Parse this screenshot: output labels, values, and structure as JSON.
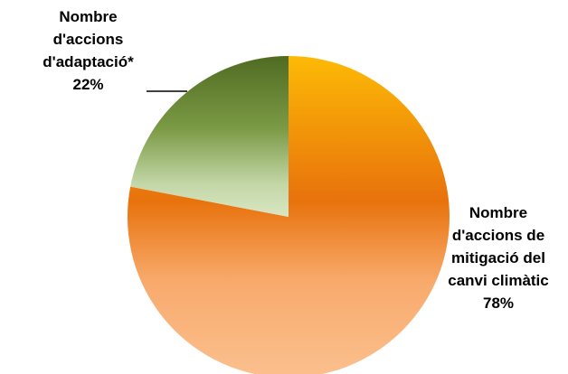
{
  "chart_data": {
    "type": "pie",
    "title": "",
    "slices": [
      {
        "label_lines": [
          "Nombre",
          "d'accions de",
          "mitigació del",
          "canvi climàtic"
        ],
        "percent_label": "78%",
        "value": 78,
        "colors": [
          "#e8720c",
          "#fbc08e"
        ]
      },
      {
        "label_lines": [
          "Nombre",
          "d'accions",
          "d'adaptació*"
        ],
        "percent_label": "22%",
        "value": 22,
        "colors": [
          "#4f6b22",
          "#d8e6c2"
        ]
      }
    ],
    "legend": "none"
  }
}
